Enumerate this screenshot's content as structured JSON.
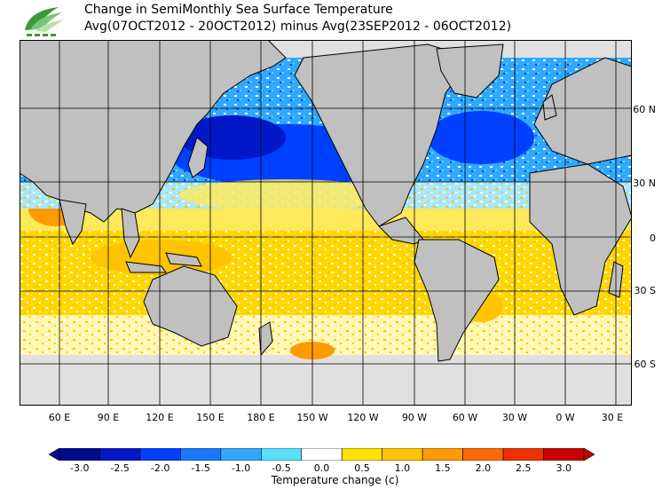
{
  "title_line1": "Change in SemiMonthly Sea Surface Temperature",
  "title_line2": "Avg(07OCT2012 - 20OCT2012) minus Avg(23SEP2012 - 06OCT2012)",
  "lat_labels": [
    "60 N",
    "30 N",
    "0",
    "30 S",
    "60 S"
  ],
  "lon_labels": [
    "60 E",
    "90 E",
    "120 E",
    "150 E",
    "180 E",
    "150 W",
    "120 W",
    "90 W",
    "60 W",
    "30 W",
    "0 W",
    "30 E"
  ],
  "colorbar": {
    "title": "Temperature change  (c)",
    "ticks": [
      "-3.0",
      "-2.5",
      "-2.0",
      "-1.5",
      "-1.0",
      "-0.5",
      "0.0",
      "0.5",
      "1.0",
      "1.5",
      "2.0",
      "2.5",
      "3.0"
    ],
    "colors": [
      "#000a8c",
      "#0018c8",
      "#0040ff",
      "#1a78ff",
      "#30a8ff",
      "#5ae0ff",
      "#ffffff",
      "#ffe400",
      "#ffc400",
      "#ff9a00",
      "#ff6a00",
      "#f03000",
      "#c80000"
    ]
  },
  "colors": {
    "land": "#c0c0c0",
    "ice": "#e0e0e0",
    "coast": "#000000",
    "grid": "#000000"
  }
}
